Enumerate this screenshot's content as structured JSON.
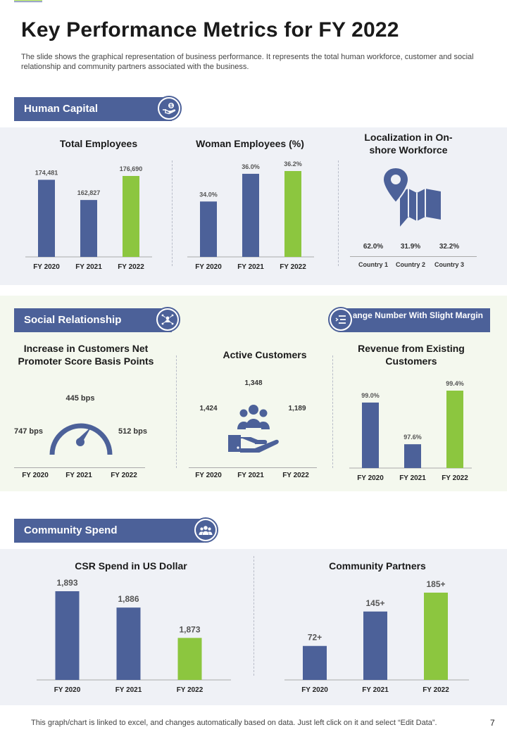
{
  "page": {
    "title": "Key Performance Metrics for FY 2022",
    "description": "The slide shows the graphical representation of  business performance. It represents the total human workforce, customer and social relationship and community partners associated with the business.",
    "footer": "This graph/chart is linked to excel,  and changes automatically based on data. Just left click on it and select “Edit Data”.",
    "page_number": "7"
  },
  "colors": {
    "primary": "#4c6199",
    "accent": "#8cc63f",
    "band_gray": "#eff1f6",
    "band_green": "#f4f8ee"
  },
  "sections": {
    "human_capital": {
      "label": "Human Capital",
      "icon": "hand-dollar-icon"
    },
    "social_relationship": {
      "label": "Social Relationship",
      "icon": "people-network-icon"
    },
    "community_spend": {
      "label": "Community Spend",
      "icon": "group-icon"
    },
    "change_note": {
      "label": "Change Number With Slight Margin",
      "icon": "list-icon"
    }
  },
  "localization": {
    "title": "Localization in On-shore Workforce",
    "icon": "map-pin-icon",
    "values": [
      "62.0%",
      "31.9%",
      "32.2%"
    ],
    "labels": [
      "Country 1",
      "Country 2",
      "Country 3"
    ]
  },
  "nps": {
    "title": "Increase in Customers Net Promoter Score Basis Points",
    "icon": "gauge-icon",
    "left": "747 bps",
    "top": "445 bps",
    "right": "512 bps",
    "labels": [
      "FY 2020",
      "FY 2021",
      "FY 2022"
    ]
  },
  "active_customers": {
    "title": "Active Customers",
    "icon": "hand-customers-icon",
    "left": "1,424",
    "top": "1,348",
    "right": "1,189",
    "labels": [
      "FY 2020",
      "FY 2021",
      "FY 2022"
    ]
  },
  "chart_data": [
    {
      "id": "total_employees",
      "type": "bar",
      "title": "Total Employees",
      "categories": [
        "FY 2020",
        "FY 2021",
        "FY 2022"
      ],
      "values": [
        174481,
        162827,
        176690
      ],
      "labels": [
        "174,481",
        "162,827",
        "176,690"
      ],
      "highlight_last": true
    },
    {
      "id": "woman_employees",
      "type": "bar",
      "title": "Woman  Employees (%)",
      "categories": [
        "FY 2020",
        "FY 2021",
        "FY 2022"
      ],
      "values": [
        34.0,
        36.0,
        36.2
      ],
      "labels": [
        "34.0%",
        "36.0%",
        "36.2%"
      ],
      "highlight_last": true
    },
    {
      "id": "revenue_existing",
      "type": "bar",
      "title": "Revenue from Existing Customers",
      "categories": [
        "FY 2020",
        "FY 2021",
        "FY 2022"
      ],
      "values": [
        99.0,
        97.6,
        99.4
      ],
      "labels": [
        "99.0%",
        "97.6%",
        "99.4%"
      ],
      "highlight_last": true
    },
    {
      "id": "csr_spend",
      "type": "bar",
      "title": "CSR Spend in US Dollar",
      "categories": [
        "FY 2020",
        "FY 2021",
        "FY 2022"
      ],
      "values": [
        1893,
        1886,
        1873
      ],
      "labels": [
        "1,893",
        "1,886",
        "1,873"
      ],
      "highlight_last": true
    },
    {
      "id": "community_partners",
      "type": "bar",
      "title": "Community  Partners",
      "categories": [
        "FY 2020",
        "FY 2021",
        "FY 2022"
      ],
      "values": [
        72,
        145,
        185
      ],
      "labels": [
        "72+",
        "145+",
        "185+"
      ],
      "highlight_last": true
    }
  ]
}
